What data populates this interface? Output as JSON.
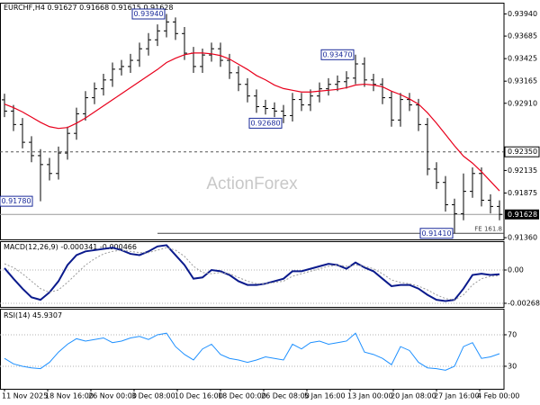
{
  "chart_data": [
    {
      "type": "ohlc",
      "title": "EURCHF,H4",
      "header_values": [
        0.91627,
        0.91668,
        0.91615,
        0.91628
      ],
      "watermark": "ActionForex",
      "color": "#000000",
      "open": [
        0.9295,
        0.9282,
        0.92665,
        0.9246,
        0.92306,
        0.92203,
        0.921,
        0.92336,
        0.92563,
        0.92789,
        0.92974,
        0.93077,
        0.93179,
        0.93303,
        0.93334,
        0.93405,
        0.93539,
        0.93642,
        0.93745,
        0.93848,
        0.93714,
        0.93488,
        0.93334,
        0.93467,
        0.93539,
        0.93405,
        0.93262,
        0.93128,
        0.92994,
        0.92871,
        0.9285,
        0.9282,
        0.92768,
        0.92953,
        0.92891,
        0.92994,
        0.93077,
        0.93128,
        0.93159,
        0.932,
        0.93364,
        0.93179,
        0.93128,
        0.92974,
        0.92717,
        0.92953,
        0.92891,
        0.92665,
        0.92151,
        0.91997,
        0.9174,
        0.91637,
        0.91894,
        0.921,
        0.91792,
        0.9172
      ],
      "high": [
        0.9302,
        0.9289,
        0.9274,
        0.9253,
        0.9238,
        0.9228,
        0.9241,
        0.9264,
        0.9286,
        0.9305,
        0.9315,
        0.9325,
        0.9338,
        0.9341,
        0.9348,
        0.9361,
        0.9372,
        0.9382,
        0.9394,
        0.939,
        0.9379,
        0.9356,
        0.9354,
        0.9361,
        0.9361,
        0.9348,
        0.9334,
        0.932,
        0.9307,
        0.9295,
        0.9292,
        0.9289,
        0.9303,
        0.9303,
        0.9307,
        0.9315,
        0.932,
        0.9323,
        0.9328,
        0.9347,
        0.9344,
        0.9325,
        0.932,
        0.9305,
        0.9303,
        0.9303,
        0.9296,
        0.9274,
        0.9223,
        0.9207,
        0.9181,
        0.921,
        0.9217,
        0.9217,
        0.9186,
        0.9179
      ],
      "low": [
        0.9275,
        0.9259,
        0.9239,
        0.9223,
        0.9178,
        0.9202,
        0.9203,
        0.9226,
        0.9249,
        0.9271,
        0.929,
        0.93,
        0.931,
        0.9323,
        0.9326,
        0.9333,
        0.9346,
        0.9357,
        0.9367,
        0.9364,
        0.9341,
        0.9326,
        0.9326,
        0.9339,
        0.9333,
        0.9319,
        0.9305,
        0.9292,
        0.928,
        0.9278,
        0.9275,
        0.9268,
        0.927,
        0.9282,
        0.9282,
        0.9292,
        0.93,
        0.9305,
        0.9308,
        0.9313,
        0.931,
        0.9305,
        0.929,
        0.9264,
        0.9264,
        0.9282,
        0.9259,
        0.9208,
        0.9192,
        0.9166,
        0.9141,
        0.9156,
        0.9182,
        0.9172,
        0.9164,
        0.9156
      ],
      "close": [
        0.9282,
        0.92665,
        0.9246,
        0.92306,
        0.92203,
        0.921,
        0.92336,
        0.92563,
        0.92789,
        0.92974,
        0.93077,
        0.93179,
        0.93303,
        0.93334,
        0.93405,
        0.93539,
        0.93642,
        0.93745,
        0.93848,
        0.93714,
        0.93488,
        0.93334,
        0.93467,
        0.93539,
        0.93405,
        0.93262,
        0.93128,
        0.92994,
        0.92871,
        0.9285,
        0.9282,
        0.92768,
        0.92953,
        0.92891,
        0.92994,
        0.93077,
        0.93128,
        0.93159,
        0.932,
        0.93364,
        0.93179,
        0.93128,
        0.92974,
        0.92717,
        0.92953,
        0.92891,
        0.92665,
        0.92151,
        0.91997,
        0.9174,
        0.91637,
        0.91894,
        0.921,
        0.91792,
        0.9172,
        0.91628
      ],
      "ma": {
        "color": "#e8001c",
        "values": [
          0.929,
          0.9286,
          0.9281,
          0.9275,
          0.9269,
          0.9264,
          0.9262,
          0.9263,
          0.9268,
          0.9274,
          0.9281,
          0.9288,
          0.9295,
          0.9302,
          0.9309,
          0.9316,
          0.9323,
          0.933,
          0.9338,
          0.9343,
          0.9347,
          0.9349,
          0.9349,
          0.9348,
          0.9346,
          0.9342,
          0.9336,
          0.933,
          0.9323,
          0.9318,
          0.9312,
          0.9308,
          0.9306,
          0.9304,
          0.9304,
          0.9305,
          0.9306,
          0.9307,
          0.9309,
          0.9312,
          0.9313,
          0.9312,
          0.931,
          0.9305,
          0.9301,
          0.9296,
          0.929,
          0.928,
          0.9268,
          0.9255,
          0.9242,
          0.923,
          0.9222,
          0.9212,
          0.9201,
          0.919
        ]
      },
      "ylim": [
        0.9134,
        0.9407
      ],
      "yticks": [
        {
          "value": 0.9394,
          "label": "0.93940"
        },
        0.93685,
        0.93425,
        0.93165,
        {
          "value": 0.9291,
          "label": "0.92910"
        },
        0.92135,
        0.91875,
        {
          "value": 0.9136,
          "label": "0.91360"
        }
      ],
      "grid": false,
      "levels": [
        {
          "value": 0.9235,
          "label": "0.92350",
          "style": "dashed"
        },
        {
          "value": 0.91628,
          "label": "0.91628",
          "style": "current"
        },
        {
          "value": 0.9141,
          "label": "FE 161.8",
          "style": "fibo",
          "from": 17
        }
      ],
      "annotations": [
        {
          "label": "0.93940",
          "x": 18,
          "value": 0.9394
        },
        {
          "label": "0.93470",
          "x": 39,
          "value": 0.9347
        },
        {
          "label": "0.92680",
          "x": 31,
          "value": 0.9268
        },
        {
          "label": "0.91780",
          "x": 3,
          "value": 0.9178
        },
        {
          "label": "0.91410",
          "x": 50,
          "value": 0.9141
        }
      ]
    },
    {
      "type": "line",
      "title": "MACD(12,26,9)",
      "lines": [
        {
          "color": "#0a1a8c",
          "width": 2,
          "values": [
            0.00015,
            -0.0007,
            -0.0015,
            -0.0022,
            -0.0024,
            -0.0018,
            -0.0009,
            0.0004,
            0.0012,
            0.0015,
            0.0016,
            0.0017,
            0.0018,
            0.0016,
            0.0013,
            0.0012,
            0.0015,
            0.0019,
            0.002,
            0.0012,
            0.0004,
            -0.0007,
            -0.0006,
            0,
            -0.0001,
            -0.0004,
            -0.0009,
            -0.0012,
            -0.0012,
            -0.0011,
            -0.0009,
            -0.0007,
            -0.0001,
            -0.0001,
            0.0001,
            0.0003,
            0.0005,
            0.0004,
            0.0001,
            0.0006,
            0.0002,
            -0.0001,
            -0.0007,
            -0.0013,
            -0.0012,
            -0.0012,
            -0.0015,
            -0.002,
            -0.0024,
            -0.0025,
            -0.0024,
            -0.0015,
            -0.0004,
            -0.0003,
            -0.0004,
            -0.000341
          ]
        },
        {
          "color": "#9a9a9a",
          "width": 1,
          "dash": true,
          "values": [
            0.0005,
            0.0002,
            -0.0003,
            -0.0009,
            -0.0015,
            -0.0018,
            -0.0016,
            -0.001,
            -0.0003,
            0.0004,
            0.0009,
            0.0013,
            0.0015,
            0.0016,
            0.0015,
            0.0014,
            0.0014,
            0.0016,
            0.0018,
            0.0016,
            0.0011,
            0.0003,
            -0.0002,
            -0.0003,
            -0.0002,
            -0.0003,
            -0.0006,
            -0.0009,
            -0.0011,
            -0.0011,
            -0.001,
            -0.0009,
            -0.0005,
            -0.0003,
            -0.0001,
            0.0001,
            0.0003,
            0.0004,
            0.0003,
            0.0004,
            0.0003,
            0.0001,
            -0.0003,
            -0.0008,
            -0.001,
            -0.0011,
            -0.0013,
            -0.0016,
            -0.002,
            -0.0023,
            -0.0024,
            -0.002,
            -0.0012,
            -0.0007,
            -0.0005,
            -0.000466
          ]
        }
      ],
      "ylim": [
        -0.00297,
        0.00232
      ],
      "yticks": [
        {
          "value": 0,
          "label": "0.00"
        },
        -0.002681
      ],
      "grid": true
    },
    {
      "type": "line",
      "title": "RSI(14)",
      "lines": [
        {
          "color": "#1e90ff",
          "width": 1,
          "values": [
            40,
            33,
            30,
            28,
            27,
            35,
            48,
            58,
            65,
            62,
            64,
            66,
            60,
            62,
            66,
            68,
            64,
            70,
            72,
            55,
            45,
            38,
            52,
            58,
            45,
            40,
            38,
            35,
            38,
            42,
            40,
            38,
            58,
            52,
            60,
            62,
            58,
            60,
            62,
            72,
            48,
            45,
            40,
            32,
            55,
            50,
            35,
            28,
            27,
            25,
            30,
            55,
            60,
            40,
            42,
            45.9307
          ]
        }
      ],
      "ylim": [
        1.4,
        103.1
      ],
      "yticks": [
        70,
        30
      ],
      "grid": true,
      "xticks": [
        {
          "value": 0,
          "label": "11 Nov 2025"
        },
        {
          "value": 4.8,
          "label": "18 Nov 16:00"
        },
        {
          "value": 9.6,
          "label": "26 Nov 00:00"
        },
        {
          "value": 14.4,
          "label": "3 Dec 08:00"
        },
        {
          "value": 19.2,
          "label": "10 Dec 16:00"
        },
        {
          "value": 24,
          "label": "18 Dec 00:00"
        },
        {
          "value": 28.8,
          "label": "26 Dec 08:00"
        },
        {
          "value": 33.6,
          "label": "5 Jan 16:00"
        },
        {
          "value": 38.4,
          "label": "13 Jan 00:00"
        },
        {
          "value": 43.2,
          "label": "20 Jan 08:00"
        },
        {
          "value": 48,
          "label": "27 Jan 16:00"
        },
        {
          "value": 52.8,
          "label": "4 Feb 00:00"
        }
      ]
    }
  ]
}
